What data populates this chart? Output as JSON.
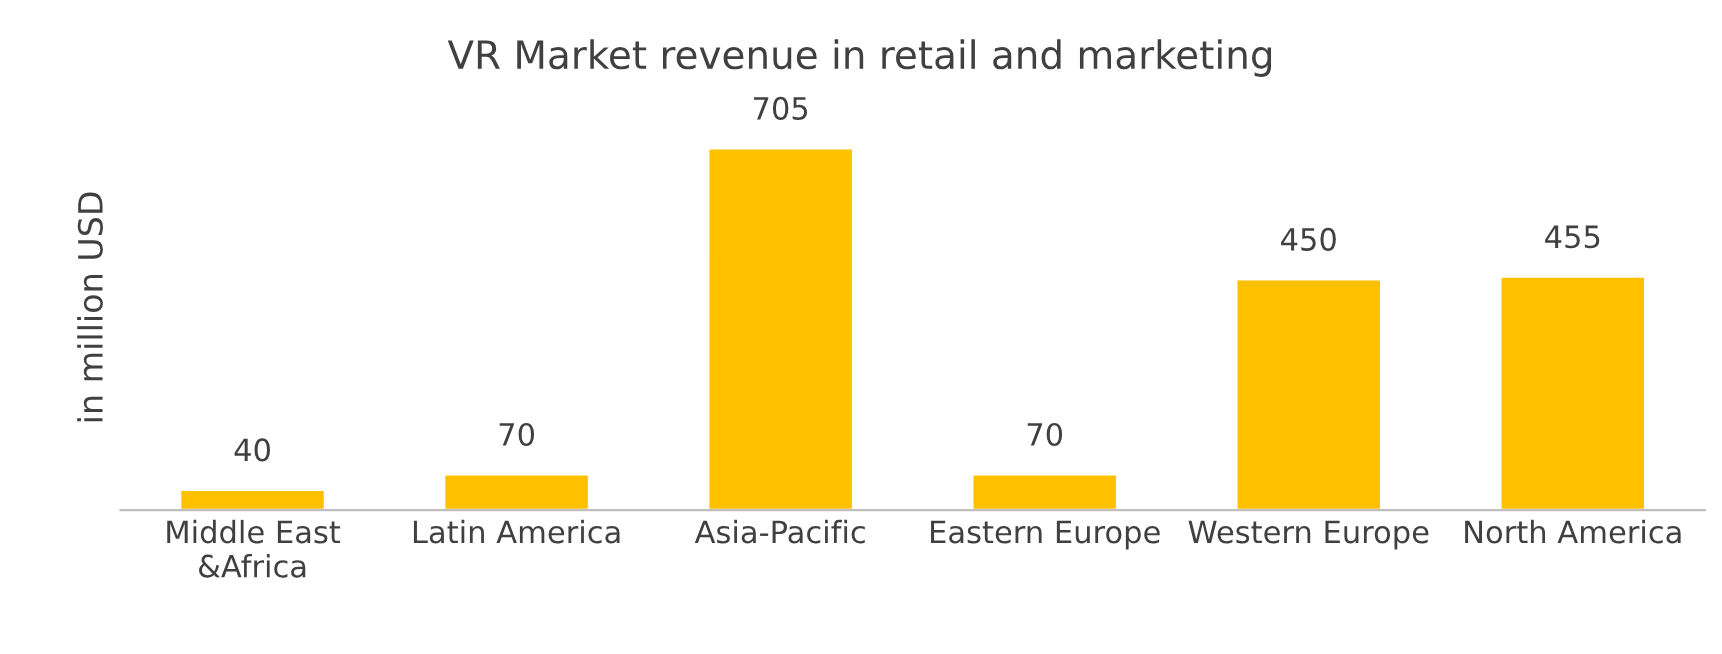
{
  "chart_data": {
    "type": "bar",
    "title": "VR Market revenue in retail and marketing",
    "ylabel": "in million USD",
    "categories": [
      "Middle East\n&Africa",
      "Latin America",
      "Asia-Pacific",
      "Eastern Europe",
      "Western Europe",
      "North America"
    ],
    "values": [
      40,
      70,
      705,
      70,
      450,
      455
    ],
    "color": "#ffc000",
    "data_labels": true,
    "grid": false,
    "legend": false
  }
}
